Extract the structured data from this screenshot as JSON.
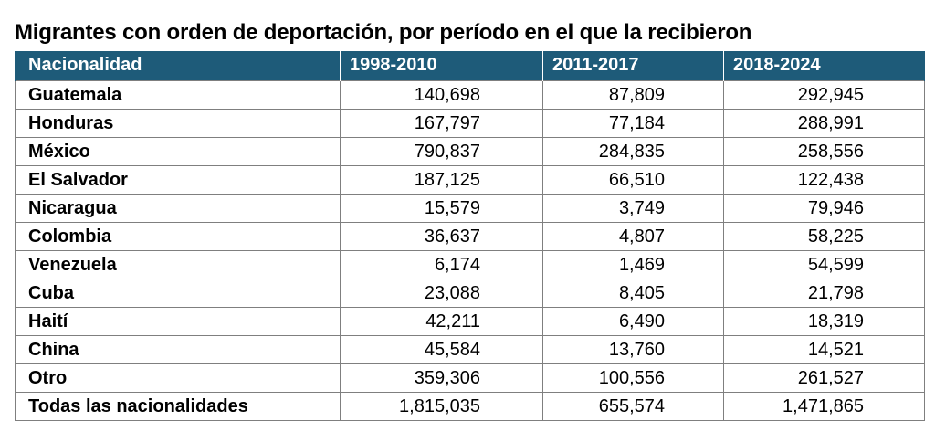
{
  "title": "Migrantes con orden de deportación, por período en el que la recibieron",
  "colors": {
    "header_background": "#1e5b79",
    "header_text": "#ffffff",
    "grid_lines": "#7f7f7f"
  },
  "table": {
    "headers": [
      "Nacionalidad",
      "1998-2010",
      "2011-2017",
      "2018-2024"
    ],
    "rows": [
      {
        "nacionalidad": "Guatemala",
        "p1998_2010": "140,698",
        "p2011_2017": "87,809",
        "p2018_2024": "292,945"
      },
      {
        "nacionalidad": "Honduras",
        "p1998_2010": "167,797",
        "p2011_2017": "77,184",
        "p2018_2024": "288,991"
      },
      {
        "nacionalidad": "México",
        "p1998_2010": "790,837",
        "p2011_2017": "284,835",
        "p2018_2024": "258,556"
      },
      {
        "nacionalidad": "El Salvador",
        "p1998_2010": "187,125",
        "p2011_2017": "66,510",
        "p2018_2024": "122,438"
      },
      {
        "nacionalidad": "Nicaragua",
        "p1998_2010": "15,579",
        "p2011_2017": "3,749",
        "p2018_2024": "79,946"
      },
      {
        "nacionalidad": "Colombia",
        "p1998_2010": "36,637",
        "p2011_2017": "4,807",
        "p2018_2024": "58,225"
      },
      {
        "nacionalidad": "Venezuela",
        "p1998_2010": "6,174",
        "p2011_2017": "1,469",
        "p2018_2024": "54,599"
      },
      {
        "nacionalidad": "Cuba",
        "p1998_2010": "23,088",
        "p2011_2017": "8,405",
        "p2018_2024": "21,798"
      },
      {
        "nacionalidad": "Haití",
        "p1998_2010": "42,211",
        "p2011_2017": "6,490",
        "p2018_2024": "18,319"
      },
      {
        "nacionalidad": "China",
        "p1998_2010": "45,584",
        "p2011_2017": "13,760",
        "p2018_2024": "14,521"
      },
      {
        "nacionalidad": "Otro",
        "p1998_2010": "359,306",
        "p2011_2017": "100,556",
        "p2018_2024": "261,527"
      },
      {
        "nacionalidad": "Todas las nacionalidades",
        "p1998_2010": "1,815,035",
        "p2011_2017": "655,574",
        "p2018_2024": "1,471,865"
      }
    ]
  }
}
